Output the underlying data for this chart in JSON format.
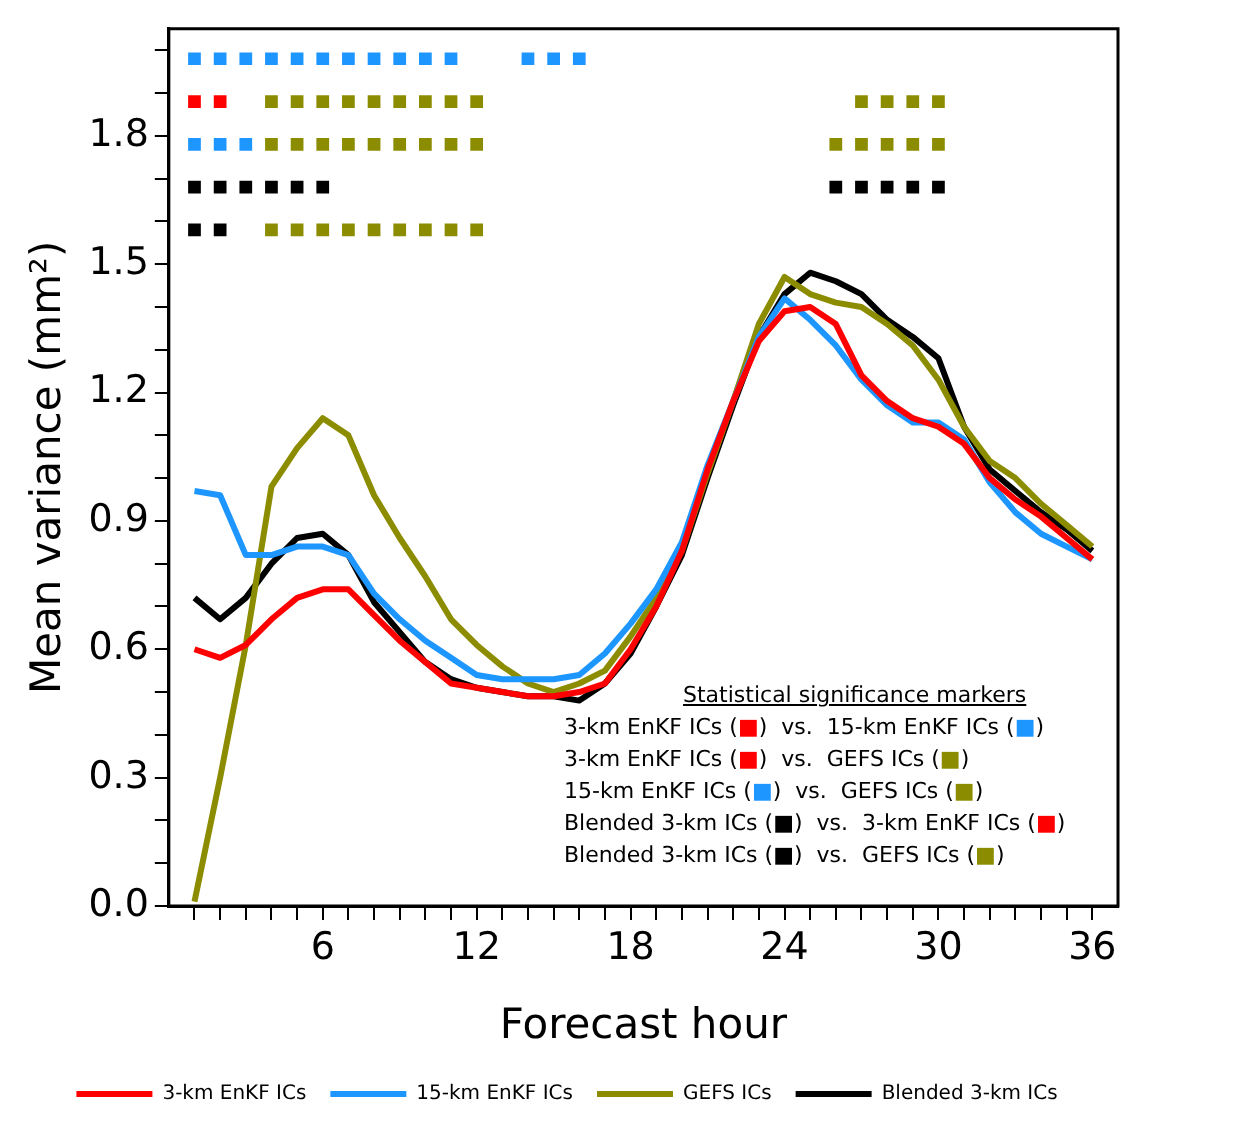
{
  "chart_data": {
    "type": "line",
    "xlabel": "Forecast hour",
    "ylabel": "Mean variance (mm²)",
    "x": [
      1,
      2,
      3,
      4,
      5,
      6,
      7,
      8,
      9,
      10,
      11,
      12,
      13,
      14,
      15,
      16,
      17,
      18,
      19,
      20,
      21,
      22,
      23,
      24,
      25,
      26,
      27,
      28,
      29,
      30,
      31,
      32,
      33,
      34,
      35,
      36
    ],
    "xlim": [
      0,
      37
    ],
    "xticks": [
      {
        "value": 1,
        "label": null
      },
      {
        "value": 2,
        "label": null
      },
      {
        "value": 3,
        "label": null
      },
      {
        "value": 4,
        "label": null
      },
      {
        "value": 5,
        "label": null
      },
      6,
      {
        "value": 7,
        "label": null
      },
      {
        "value": 8,
        "label": null
      },
      {
        "value": 9,
        "label": null
      },
      {
        "value": 10,
        "label": null
      },
      {
        "value": 11,
        "label": null
      },
      12,
      {
        "value": 13,
        "label": null
      },
      {
        "value": 14,
        "label": null
      },
      {
        "value": 15,
        "label": null
      },
      {
        "value": 16,
        "label": null
      },
      {
        "value": 17,
        "label": null
      },
      18,
      {
        "value": 19,
        "label": null
      },
      {
        "value": 20,
        "label": null
      },
      {
        "value": 21,
        "label": null
      },
      {
        "value": 22,
        "label": null
      },
      {
        "value": 23,
        "label": null
      },
      24,
      {
        "value": 25,
        "label": null
      },
      {
        "value": 26,
        "label": null
      },
      {
        "value": 27,
        "label": null
      },
      {
        "value": 28,
        "label": null
      },
      {
        "value": 29,
        "label": null
      },
      30,
      {
        "value": 31,
        "label": null
      },
      {
        "value": 32,
        "label": null
      },
      {
        "value": 33,
        "label": null
      },
      {
        "value": 34,
        "label": null
      },
      {
        "value": 35,
        "label": null
      },
      36
    ],
    "ylim": [
      0,
      2.05
    ],
    "yticks": [
      {
        "value": 0,
        "label": "0.0"
      },
      {
        "value": 0.1,
        "label": null
      },
      {
        "value": 0.2,
        "label": null
      },
      0.3,
      {
        "value": 0.4,
        "label": null
      },
      {
        "value": 0.5,
        "label": null
      },
      0.6,
      {
        "value": 0.7,
        "label": null
      },
      {
        "value": 0.8,
        "label": null
      },
      0.9,
      {
        "value": 1.0,
        "label": null
      },
      {
        "value": 1.1,
        "label": null
      },
      1.2,
      {
        "value": 1.3,
        "label": null
      },
      {
        "value": 1.4,
        "label": null
      },
      1.5,
      {
        "value": 1.6,
        "label": null
      },
      {
        "value": 1.7,
        "label": null
      },
      1.8,
      {
        "value": 1.9,
        "label": null
      },
      {
        "value": 2.0,
        "label": null
      }
    ],
    "grid": false,
    "legend": "bottom",
    "line_style": "solid",
    "marker": "none",
    "series": [
      {
        "name": "3-km EnKF ICs",
        "color": "#ff0000",
        "values": [
          0.6,
          0.58,
          0.61,
          0.67,
          0.72,
          0.74,
          0.74,
          0.68,
          0.62,
          0.57,
          0.52,
          0.51,
          0.5,
          0.49,
          0.49,
          0.5,
          0.52,
          0.6,
          0.7,
          0.83,
          1.02,
          1.18,
          1.32,
          1.39,
          1.4,
          1.36,
          1.24,
          1.18,
          1.14,
          1.12,
          1.08,
          1.0,
          0.95,
          0.91,
          0.86,
          0.81
        ]
      },
      {
        "name": "15-km EnKF ICs",
        "color": "#1e96ff",
        "values": [
          0.97,
          0.96,
          0.82,
          0.82,
          0.84,
          0.84,
          0.82,
          0.73,
          0.67,
          0.62,
          0.58,
          0.54,
          0.53,
          0.53,
          0.53,
          0.54,
          0.59,
          0.66,
          0.74,
          0.85,
          1.03,
          1.18,
          1.33,
          1.42,
          1.37,
          1.31,
          1.23,
          1.17,
          1.13,
          1.13,
          1.09,
          0.99,
          0.92,
          0.87,
          0.84,
          0.81
        ]
      },
      {
        "name": "GEFS ICs",
        "color": "#8c8c00",
        "values": [
          0.01,
          0.3,
          0.61,
          0.98,
          1.07,
          1.14,
          1.1,
          0.96,
          0.86,
          0.77,
          0.67,
          0.61,
          0.56,
          0.52,
          0.5,
          0.52,
          0.55,
          0.63,
          0.72,
          0.83,
          1.01,
          1.18,
          1.36,
          1.47,
          1.43,
          1.41,
          1.4,
          1.36,
          1.31,
          1.23,
          1.12,
          1.04,
          1.0,
          0.94,
          0.89,
          0.84
        ]
      },
      {
        "name": "Blended 3-km ICs",
        "color": "#000000",
        "values": [
          0.72,
          0.67,
          0.72,
          0.8,
          0.86,
          0.87,
          0.82,
          0.71,
          0.64,
          0.57,
          0.53,
          0.51,
          0.5,
          0.49,
          0.49,
          0.48,
          0.52,
          0.59,
          0.7,
          0.82,
          1.0,
          1.17,
          1.33,
          1.43,
          1.48,
          1.46,
          1.43,
          1.37,
          1.33,
          1.28,
          1.12,
          1.02,
          0.97,
          0.92,
          0.88,
          0.83
        ]
      },
      {
        "type": "scatter",
        "marker": "square",
        "color": "#1e96ff",
        "x": [
          1,
          2,
          3,
          4,
          5,
          6,
          7,
          8,
          9,
          10,
          11,
          14,
          15,
          16
        ],
        "values": [
          1.98,
          1.98,
          1.98,
          1.98,
          1.98,
          1.98,
          1.98,
          1.98,
          1.98,
          1.98,
          1.98,
          1.98,
          1.98,
          1.98
        ]
      },
      {
        "type": "scatter",
        "marker": "square",
        "color": "#ff0000",
        "x": [
          1,
          2
        ],
        "values": [
          1.88,
          1.88
        ]
      },
      {
        "type": "scatter",
        "marker": "square",
        "color": "#8c8c00",
        "x": [
          4,
          5,
          6,
          7,
          8,
          9,
          10,
          11,
          12,
          27,
          28,
          29,
          30
        ],
        "values": [
          1.88,
          1.88,
          1.88,
          1.88,
          1.88,
          1.88,
          1.88,
          1.88,
          1.88,
          1.88,
          1.88,
          1.88,
          1.88
        ]
      },
      {
        "type": "scatter",
        "marker": "square",
        "color": "#1e96ff",
        "x": [
          1,
          2,
          3
        ],
        "values": [
          1.78,
          1.78,
          1.78
        ]
      },
      {
        "type": "scatter",
        "marker": "square",
        "color": "#8c8c00",
        "x": [
          4,
          5,
          6,
          7,
          8,
          9,
          10,
          11,
          12,
          26,
          27,
          28,
          29,
          30
        ],
        "values": [
          1.78,
          1.78,
          1.78,
          1.78,
          1.78,
          1.78,
          1.78,
          1.78,
          1.78,
          1.78,
          1.78,
          1.78,
          1.78,
          1.78
        ]
      },
      {
        "type": "scatter",
        "marker": "square",
        "color": "#000000",
        "x": [
          1,
          2,
          3,
          4,
          5,
          6,
          26,
          27,
          28,
          29,
          30
        ],
        "values": [
          1.68,
          1.68,
          1.68,
          1.68,
          1.68,
          1.68,
          1.68,
          1.68,
          1.68,
          1.68,
          1.68
        ]
      },
      {
        "type": "scatter",
        "marker": "square",
        "color": "#000000",
        "x": [
          1,
          2
        ],
        "values": [
          1.58,
          1.58
        ]
      },
      {
        "type": "scatter",
        "marker": "square",
        "color": "#8c8c00",
        "x": [
          4,
          5,
          6,
          7,
          8,
          9,
          10,
          11,
          12
        ],
        "values": [
          1.58,
          1.58,
          1.58,
          1.58,
          1.58,
          1.58,
          1.58,
          1.58,
          1.58
        ]
      }
    ],
    "annotations": [
      "Statistical significance markers",
      "3-km EnKF ICs (■)  vs.  15-km EnKF ICs (■)",
      "3-km EnKF ICs (■)  vs.  GEFS ICs (■)",
      "15-km EnKF ICs (■)  vs.  GEFS ICs (■)",
      "Blended 3-km ICs (■)  vs.  3-km EnKF ICs (■)",
      "Blended 3-km ICs (■)  vs.  GEFS ICs (■)"
    ]
  }
}
